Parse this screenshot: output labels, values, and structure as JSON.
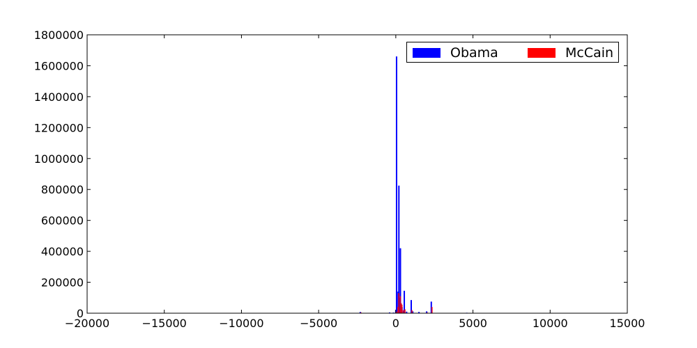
{
  "chart_data": {
    "type": "bar",
    "title": "",
    "xlabel": "",
    "ylabel": "",
    "xlim": [
      -20000,
      15000
    ],
    "ylim": [
      0,
      1800000
    ],
    "xticks": [
      -20000,
      -15000,
      -10000,
      -5000,
      0,
      5000,
      10000,
      15000
    ],
    "xtick_labels": [
      "−20000",
      "−15000",
      "−10000",
      "−5000",
      "0",
      "5000",
      "10000",
      "15000"
    ],
    "yticks": [
      0,
      200000,
      400000,
      600000,
      800000,
      1000000,
      1200000,
      1400000,
      1600000,
      1800000
    ],
    "ytick_labels": [
      "0",
      "200000",
      "400000",
      "600000",
      "800000",
      "1000000",
      "1200000",
      "1400000",
      "1600000",
      "1800000"
    ],
    "grid": false,
    "legend_position": "top-right",
    "series": [
      {
        "name": "Obama",
        "color": "#0000ff",
        "bars": [
          {
            "x": -2300,
            "y": 8000
          },
          {
            "x": -400,
            "y": 5000
          },
          {
            "x": -150,
            "y": 4000
          },
          {
            "x": 0,
            "y": 20000
          },
          {
            "x": 50,
            "y": 1660000
          },
          {
            "x": 150,
            "y": 140000
          },
          {
            "x": 200,
            "y": 825000
          },
          {
            "x": 250,
            "y": 100000
          },
          {
            "x": 300,
            "y": 420000
          },
          {
            "x": 350,
            "y": 60000
          },
          {
            "x": 400,
            "y": 40000
          },
          {
            "x": 500,
            "y": 15000
          },
          {
            "x": 550,
            "y": 145000
          },
          {
            "x": 700,
            "y": 10000
          },
          {
            "x": 1000,
            "y": 85000
          },
          {
            "x": 1100,
            "y": 12000
          },
          {
            "x": 1500,
            "y": 8000
          },
          {
            "x": 2000,
            "y": 12000
          },
          {
            "x": 2300,
            "y": 75000
          },
          {
            "x": 4600,
            "y": 3000
          }
        ]
      },
      {
        "name": "McCain",
        "color": "#ff0000",
        "bars": [
          {
            "x": -2300,
            "y": 5000
          },
          {
            "x": 0,
            "y": 10000
          },
          {
            "x": 100,
            "y": 40000
          },
          {
            "x": 150,
            "y": 130000
          },
          {
            "x": 250,
            "y": 110000
          },
          {
            "x": 300,
            "y": 65000
          },
          {
            "x": 350,
            "y": 55000
          },
          {
            "x": 450,
            "y": 20000
          },
          {
            "x": 550,
            "y": 25000
          },
          {
            "x": 1000,
            "y": 20000
          },
          {
            "x": 2000,
            "y": 5000
          },
          {
            "x": 2300,
            "y": 40000
          }
        ]
      }
    ]
  }
}
